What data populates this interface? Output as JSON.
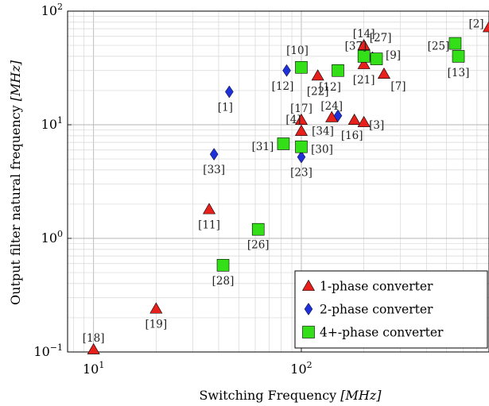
{
  "chart_data": {
    "type": "scatter",
    "title": "",
    "xlabel": "Switching Frequency",
    "xlabel_unit": "[MHz]",
    "ylabel": "Output filter natural frequency",
    "ylabel_unit": "[MHz]",
    "x_scale": "log",
    "y_scale": "log",
    "xlim": [
      7.5,
      800
    ],
    "ylim": [
      0.1,
      100
    ],
    "x_ticks": [
      {
        "value": 10,
        "base": "10",
        "exp": "1"
      },
      {
        "value": 100,
        "base": "10",
        "exp": "2"
      }
    ],
    "y_ticks": [
      {
        "value": 0.1,
        "base": "10",
        "exp": "−1"
      },
      {
        "value": 1,
        "base": "10",
        "exp": "0"
      },
      {
        "value": 10,
        "base": "10",
        "exp": "1"
      },
      {
        "value": 100,
        "base": "10",
        "exp": "2"
      }
    ],
    "grid": true,
    "legend": "bottom-right",
    "series": [
      {
        "name": "1-phase converter",
        "marker": "triangle",
        "color": "#e8201c",
        "points": [
          {
            "x": 10,
            "y": 0.105,
            "label": "[18]"
          },
          {
            "x": 20,
            "y": 0.24,
            "label": "[19]"
          },
          {
            "x": 36,
            "y": 1.8,
            "label": "[11]"
          },
          {
            "x": 100,
            "y": 11,
            "label": "[17]"
          },
          {
            "x": 100,
            "y": 8.8,
            "label": "[4]"
          },
          {
            "x": 120,
            "y": 27,
            "label": "[22]"
          },
          {
            "x": 140,
            "y": 11.6,
            "label": "[24]"
          },
          {
            "x": 180,
            "y": 11,
            "label": "[16]"
          },
          {
            "x": 200,
            "y": 10.5,
            "label": "[3]"
          },
          {
            "x": 200,
            "y": 50,
            "label": "[14]"
          },
          {
            "x": 200,
            "y": 34,
            "label": "[21]"
          },
          {
            "x": 250,
            "y": 28,
            "label": "[7]"
          },
          {
            "x": 800,
            "y": 72,
            "label": "[2]"
          }
        ]
      },
      {
        "name": "2-phase converter",
        "marker": "diamond",
        "color": "#1e30d8",
        "points": [
          {
            "x": 38,
            "y": 5.5,
            "label": "[33]"
          },
          {
            "x": 45,
            "y": 19.5,
            "label": "[1]"
          },
          {
            "x": 85,
            "y": 30,
            "label": "[12]"
          },
          {
            "x": 100,
            "y": 5.2,
            "label": "[23]"
          },
          {
            "x": 150,
            "y": 12,
            "label": "[34]"
          },
          {
            "x": 220,
            "y": 39,
            "label": "[37]"
          }
        ]
      },
      {
        "name": "4+-phase converter",
        "marker": "square",
        "color": "#33e017",
        "points": [
          {
            "x": 42,
            "y": 0.58,
            "label": "[28]"
          },
          {
            "x": 62,
            "y": 1.2,
            "label": "[26]"
          },
          {
            "x": 82,
            "y": 6.8,
            "label": "[31]"
          },
          {
            "x": 100,
            "y": 6.4,
            "label": "[30]"
          },
          {
            "x": 100,
            "y": 32,
            "label": "[10]"
          },
          {
            "x": 150,
            "y": 30,
            "label": "[12]"
          },
          {
            "x": 200,
            "y": 40,
            "label": "[27]"
          },
          {
            "x": 230,
            "y": 38,
            "label": "[9]"
          },
          {
            "x": 550,
            "y": 52,
            "label": "[25]"
          },
          {
            "x": 570,
            "y": 40,
            "label": "[13]"
          }
        ]
      }
    ]
  }
}
